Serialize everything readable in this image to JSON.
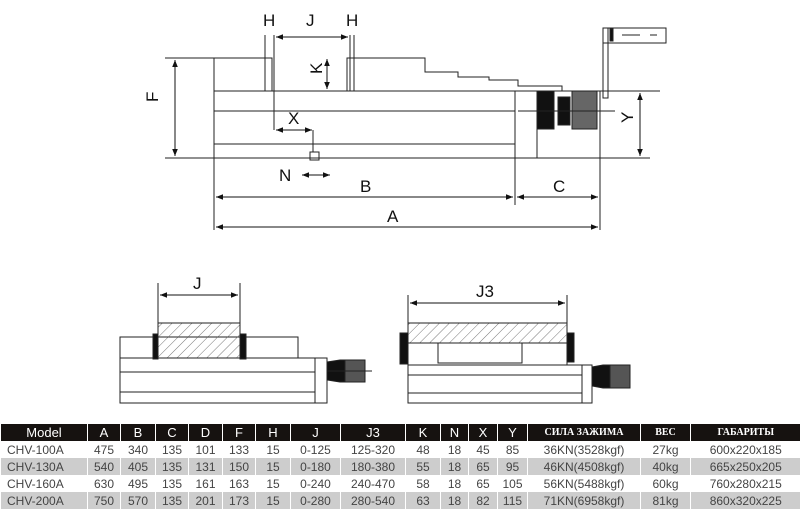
{
  "drawing": {
    "top_view": {
      "H1": "H",
      "J": "J",
      "H2": "H",
      "K": "K",
      "F": "F",
      "X": "X",
      "N": "N",
      "B": "B",
      "C": "C",
      "A": "A",
      "Y": "Y"
    },
    "bottom_left": {
      "J": "J"
    },
    "bottom_right": {
      "J3": "J3"
    }
  },
  "table": {
    "headers": [
      "Model",
      "A",
      "B",
      "C",
      "D",
      "F",
      "H",
      "J",
      "J3",
      "K",
      "N",
      "X",
      "Y",
      "СИЛА ЗАЖИМА",
      "ВЕС",
      "ГАБАРИТЫ"
    ],
    "rows": [
      [
        "CHV-100A",
        "475",
        "340",
        "135",
        "101",
        "133",
        "15",
        "0-125",
        "125-320",
        "48",
        "18",
        "45",
        "85",
        "36KN(3528kgf)",
        "27kg",
        "600x220x185"
      ],
      [
        "CHV-130A",
        "540",
        "405",
        "135",
        "131",
        "150",
        "15",
        "0-180",
        "180-380",
        "55",
        "18",
        "65",
        "95",
        "46KN(4508kgf)",
        "40kg",
        "665x250x205"
      ],
      [
        "CHV-160A",
        "630",
        "495",
        "135",
        "161",
        "163",
        "15",
        "0-240",
        "240-470",
        "58",
        "18",
        "65",
        "105",
        "56KN(5488kgf)",
        "60kg",
        "760x280x215"
      ],
      [
        "CHV-200A",
        "750",
        "570",
        "135",
        "201",
        "173",
        "15",
        "0-280",
        "280-540",
        "63",
        "18",
        "82",
        "115",
        "71KN(6958kgf)",
        "81kg",
        "860x320x225"
      ]
    ]
  }
}
